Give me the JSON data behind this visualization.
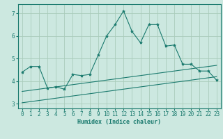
{
  "xlabel": "Humidex (Indice chaleur)",
  "background_color": "#cce8e0",
  "grid_color": "#aaccbb",
  "line_color": "#1a7a6e",
  "xlim": [
    -0.5,
    23.5
  ],
  "ylim": [
    2.8,
    7.4
  ],
  "xticks": [
    0,
    1,
    2,
    3,
    4,
    5,
    6,
    7,
    8,
    9,
    10,
    11,
    12,
    13,
    14,
    15,
    16,
    17,
    18,
    19,
    20,
    21,
    22,
    23
  ],
  "yticks": [
    3,
    4,
    5,
    6,
    7
  ],
  "curve1_x": [
    0,
    1,
    2,
    3,
    4,
    5,
    6,
    7,
    8,
    9,
    10,
    11,
    12,
    13,
    14,
    15,
    16,
    17,
    18,
    19,
    20,
    21,
    22,
    23
  ],
  "curve1_y": [
    4.4,
    4.65,
    4.65,
    3.7,
    3.75,
    3.65,
    4.3,
    4.25,
    4.3,
    5.15,
    6.0,
    6.5,
    7.1,
    6.2,
    5.7,
    6.5,
    6.5,
    5.55,
    5.6,
    4.75,
    4.75,
    4.45,
    4.45,
    4.05
  ],
  "curve2_x": [
    0,
    1,
    2,
    3,
    4,
    5,
    6,
    7,
    8,
    9,
    10,
    11,
    12,
    13,
    14,
    15,
    16,
    17,
    18,
    19,
    20,
    21,
    22,
    23
  ],
  "curve2_y": [
    3.55,
    3.6,
    3.65,
    3.7,
    3.75,
    3.8,
    3.85,
    3.9,
    3.95,
    4.0,
    4.05,
    4.1,
    4.15,
    4.2,
    4.25,
    4.3,
    4.35,
    4.4,
    4.45,
    4.5,
    4.55,
    4.6,
    4.65,
    4.7
  ],
  "curve3_x": [
    0,
    1,
    2,
    3,
    4,
    5,
    6,
    7,
    8,
    9,
    10,
    11,
    12,
    13,
    14,
    15,
    16,
    17,
    18,
    19,
    20,
    21,
    22,
    23
  ],
  "curve3_y": [
    3.05,
    3.1,
    3.15,
    3.2,
    3.25,
    3.3,
    3.35,
    3.4,
    3.45,
    3.5,
    3.55,
    3.6,
    3.65,
    3.7,
    3.75,
    3.8,
    3.85,
    3.9,
    3.95,
    4.0,
    4.05,
    4.1,
    4.15,
    4.2
  ]
}
